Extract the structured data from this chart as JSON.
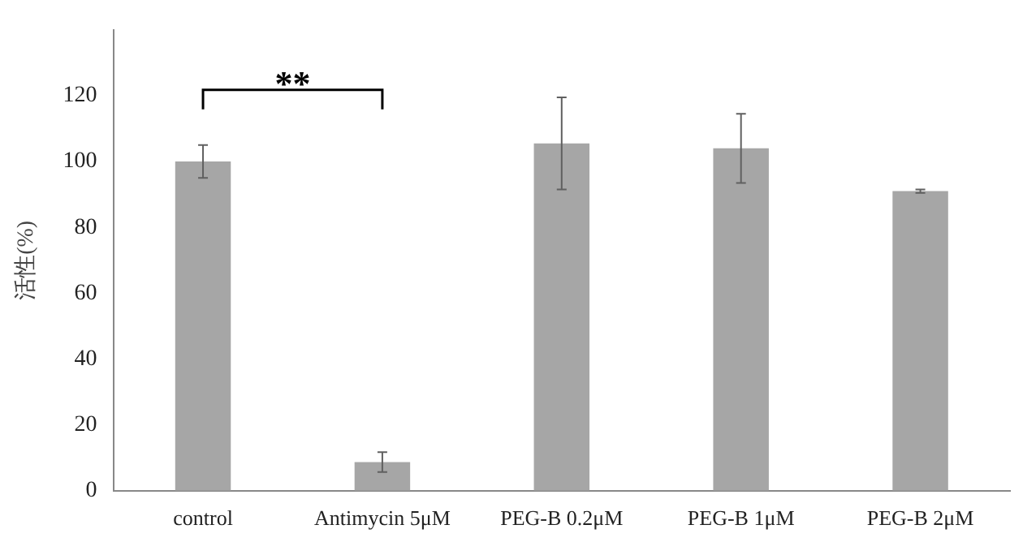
{
  "chart_data": {
    "type": "bar",
    "ylabel": "活性(%)",
    "categories": [
      "control",
      "Antimycin 5μM",
      "PEG-B 0.2μM",
      "PEG-B 1μM",
      "PEG-B 2μM"
    ],
    "values": [
      100,
      8.7,
      105.5,
      104,
      91
    ],
    "errors": [
      5,
      3,
      14,
      10.5,
      0.5
    ],
    "color": "#a6a6a6",
    "ylim": [
      0,
      140
    ],
    "yticks": [
      0,
      20,
      40,
      60,
      80,
      100,
      120
    ],
    "grid": false,
    "legend": false,
    "annotations": [
      "**"
    ]
  }
}
